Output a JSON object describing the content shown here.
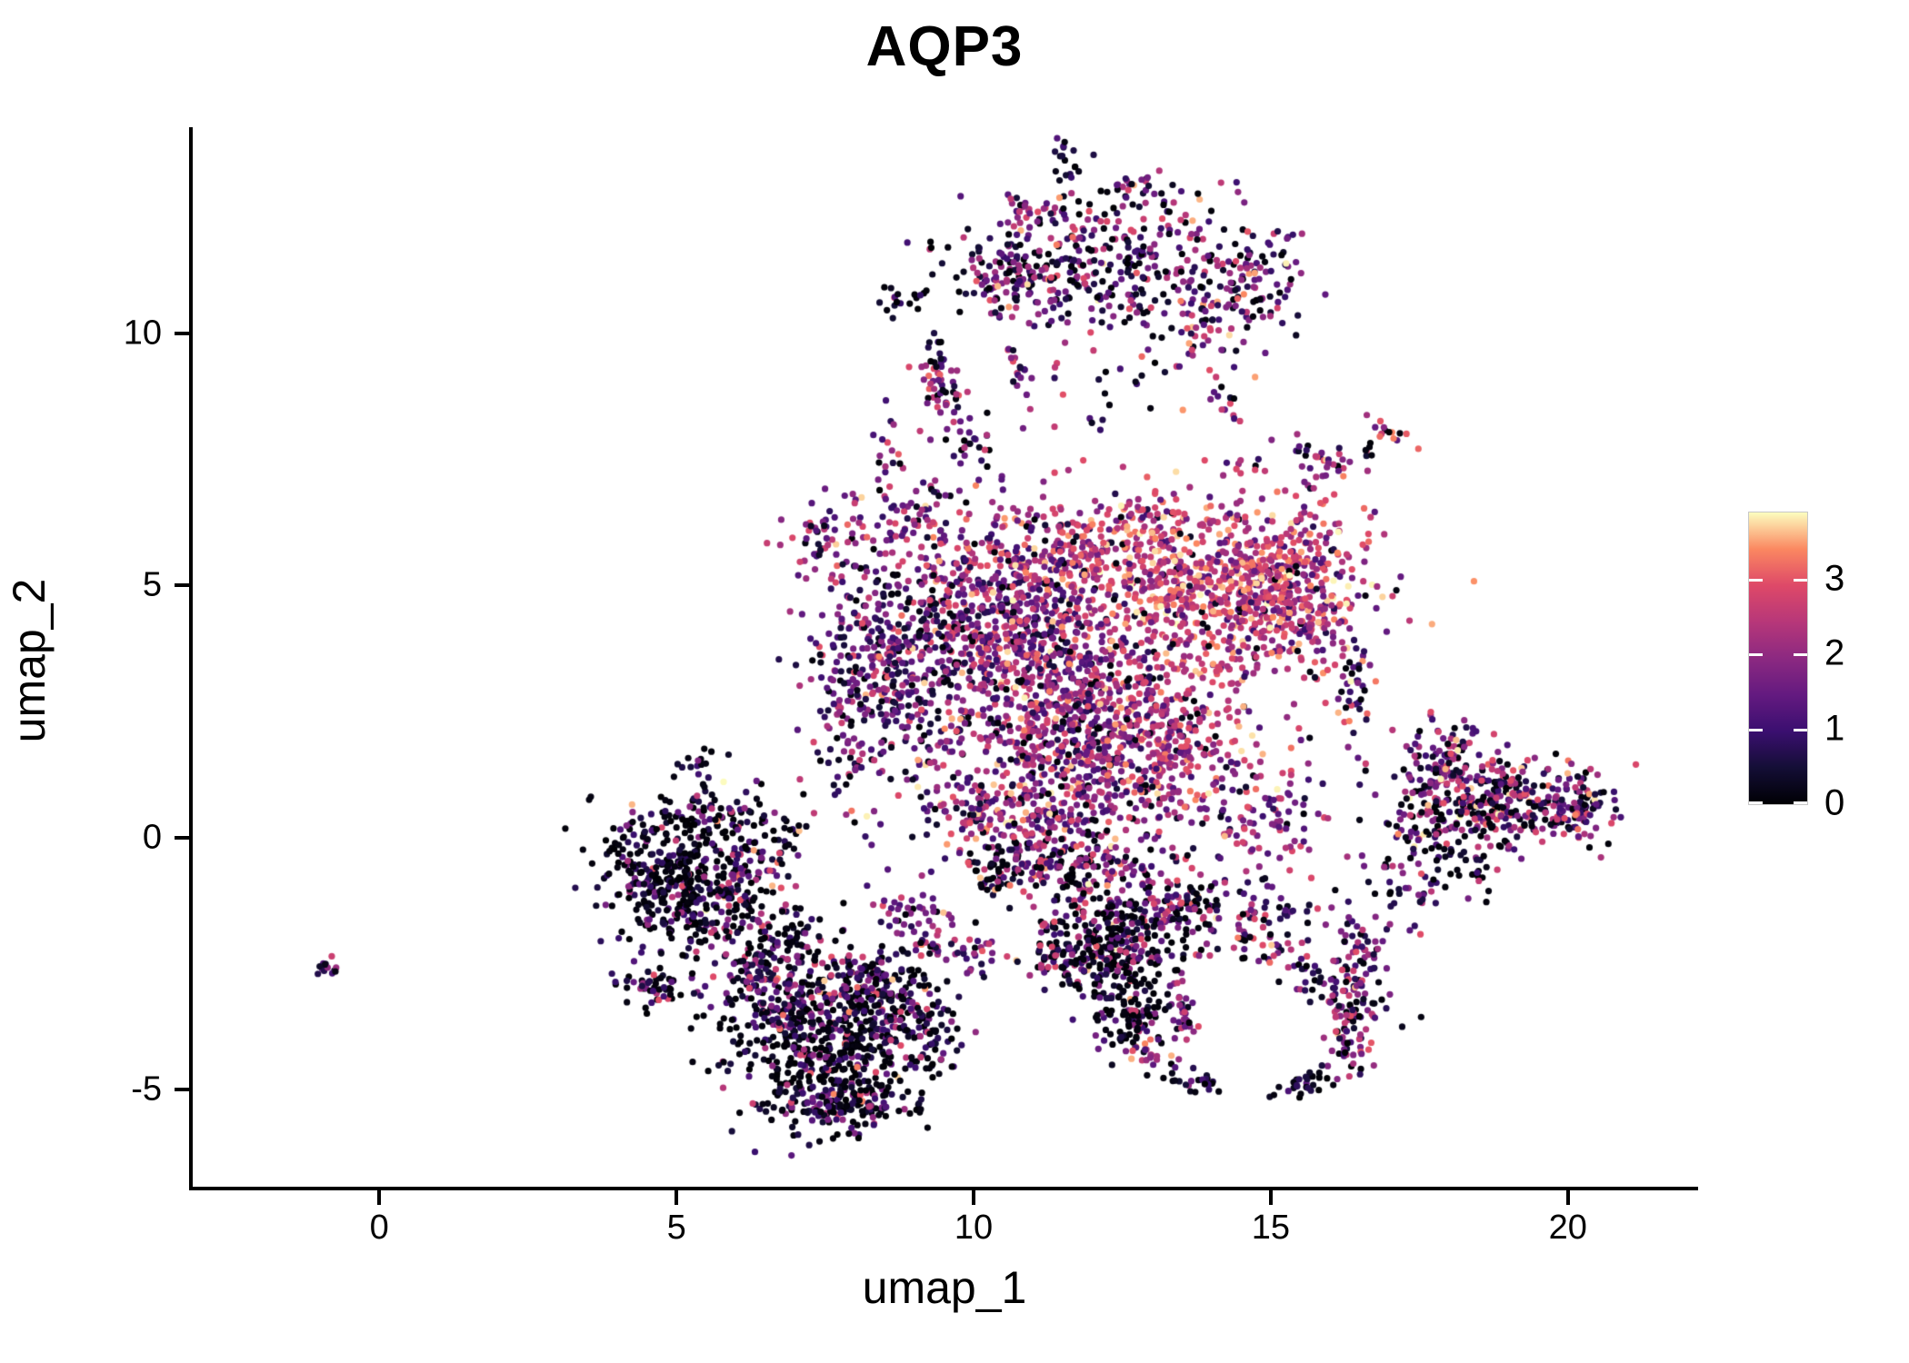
{
  "figure": {
    "title": "AQP3"
  },
  "axes": {
    "x": {
      "label": "umap_1",
      "ticks": [
        0,
        5,
        10,
        15,
        20
      ]
    },
    "y": {
      "label": "umap_2",
      "ticks": [
        -5,
        0,
        5,
        10
      ]
    }
  },
  "colorbar": {
    "ticks": [
      0,
      1,
      2,
      3
    ],
    "min": 0,
    "max": 3.9
  },
  "chart_data": {
    "type": "scatter",
    "title": "AQP3",
    "xlabel": "umap_1",
    "ylabel": "umap_2",
    "xlim": [
      -3.17,
      22.19
    ],
    "ylim": [
      -6.92,
      14.09
    ],
    "x_ticks": [
      0,
      5,
      10,
      15,
      20
    ],
    "y_ticks": [
      -5,
      0,
      5,
      10
    ],
    "grid": false,
    "legend_position": "right-colorbar",
    "point_radius_px": 3.6,
    "seed": 1337,
    "n_points_total": 8203,
    "color_scale": {
      "name": "magma",
      "domain": [
        0,
        3.9
      ],
      "stops": [
        [
          0.0,
          "#000004"
        ],
        [
          0.125,
          "#140e36"
        ],
        [
          0.25,
          "#3b0f70"
        ],
        [
          0.375,
          "#641a80"
        ],
        [
          0.5,
          "#8c2981"
        ],
        [
          0.625,
          "#b73779"
        ],
        [
          0.75,
          "#de4968"
        ],
        [
          0.875,
          "#fb8861"
        ],
        [
          1.0,
          "#fcfdbf"
        ]
      ]
    },
    "expression_bands": [
      [
        0,
        0.15
      ],
      [
        0.15,
        1.0
      ],
      [
        1.0,
        2.0
      ],
      [
        2.0,
        3.0
      ],
      [
        3.0,
        3.9
      ]
    ],
    "expression_profiles": {
      "dark": [
        0.6,
        0.26,
        0.09,
        0.04,
        0.01
      ],
      "darkmag": [
        0.42,
        0.28,
        0.18,
        0.1,
        0.02
      ],
      "darkpink": [
        0.38,
        0.2,
        0.18,
        0.2,
        0.04
      ],
      "purpledark": [
        0.25,
        0.52,
        0.16,
        0.06,
        0.01
      ],
      "purplemag": [
        0.12,
        0.4,
        0.32,
        0.14,
        0.02
      ],
      "darkpurplemag": [
        0.28,
        0.35,
        0.22,
        0.12,
        0.03
      ],
      "mixed": [
        0.18,
        0.22,
        0.25,
        0.28,
        0.07
      ],
      "magsparse": [
        0.1,
        0.3,
        0.4,
        0.18,
        0.02
      ],
      "pinkdark": [
        0.24,
        0.18,
        0.28,
        0.26,
        0.04
      ],
      "pinkmag": [
        0.05,
        0.17,
        0.45,
        0.28,
        0.05
      ],
      "pinkmid": [
        0.06,
        0.13,
        0.35,
        0.37,
        0.09
      ],
      "pinkwarm": [
        0.04,
        0.09,
        0.28,
        0.45,
        0.14
      ],
      "warmpink": [
        0.03,
        0.07,
        0.22,
        0.5,
        0.18
      ],
      "warm": [
        0.02,
        0.04,
        0.12,
        0.55,
        0.27
      ]
    },
    "clusters": [
      [
        11.9,
        11.1,
        1.45,
        0.42,
        -8,
        230,
        "darkpurplemag"
      ],
      [
        12.3,
        12.0,
        1.15,
        0.55,
        0,
        150,
        "mixed"
      ],
      [
        13.9,
        10.4,
        0.5,
        0.7,
        0,
        90,
        "pinkmag"
      ],
      [
        11.55,
        13.3,
        0.12,
        0.3,
        10,
        16,
        "purpledark"
      ],
      [
        10.45,
        11.0,
        0.5,
        0.33,
        0,
        60,
        "mixed"
      ],
      [
        8.85,
        10.7,
        0.22,
        0.15,
        0,
        16,
        "purpledark"
      ],
      [
        14.9,
        11.2,
        0.42,
        0.5,
        0,
        55,
        "mixed"
      ],
      [
        10.9,
        12.4,
        0.3,
        0.22,
        0,
        22,
        "pinkwarm"
      ],
      [
        12.7,
        12.85,
        0.22,
        0.25,
        0,
        20,
        "darkpurplemag"
      ],
      [
        9.55,
        8.6,
        0.18,
        0.42,
        15,
        30,
        "pinkmag"
      ],
      [
        9.3,
        9.2,
        0.18,
        0.18,
        0,
        18,
        "warmpink"
      ],
      [
        9.4,
        9.6,
        0.08,
        0.25,
        0,
        12,
        "dark"
      ],
      [
        9.95,
        7.9,
        0.15,
        0.22,
        0,
        15,
        "pinkdark"
      ],
      [
        10.75,
        9.4,
        0.1,
        0.3,
        15,
        16,
        "pinkmag"
      ],
      [
        15.9,
        7.5,
        0.35,
        0.2,
        -10,
        30,
        "pinkmag"
      ],
      [
        16.6,
        7.75,
        0.12,
        0.09,
        0,
        6,
        "dark"
      ],
      [
        17.05,
        8.0,
        0.22,
        0.09,
        -35,
        14,
        "warm"
      ],
      [
        14.0,
        4.8,
        1.15,
        0.85,
        0,
        650,
        "warm"
      ],
      [
        15.35,
        5.0,
        0.65,
        0.75,
        0,
        280,
        "warmpink"
      ],
      [
        11.3,
        5.6,
        1.2,
        0.5,
        0,
        280,
        "warmpink"
      ],
      [
        10.3,
        4.4,
        0.9,
        0.8,
        0,
        420,
        "pinkmag"
      ],
      [
        8.6,
        3.4,
        0.7,
        0.95,
        0,
        300,
        "purplemag"
      ],
      [
        11.5,
        3.0,
        1.1,
        0.9,
        0,
        600,
        "pinkmid"
      ],
      [
        12.8,
        1.6,
        1.0,
        0.8,
        0,
        450,
        "pinkwarm"
      ],
      [
        10.6,
        0.6,
        1.0,
        0.7,
        0,
        330,
        "pinkmid"
      ],
      [
        11.6,
        -0.55,
        0.8,
        0.45,
        0,
        170,
        "pinkdark"
      ],
      [
        10.35,
        -0.75,
        0.2,
        0.3,
        0,
        40,
        "dark"
      ],
      [
        7.9,
        2.4,
        0.3,
        1.1,
        5,
        80,
        "pinkmag"
      ],
      [
        9.0,
        -1.6,
        0.5,
        0.28,
        -30,
        50,
        "pinkmag"
      ],
      [
        13.1,
        6.4,
        0.6,
        0.28,
        0,
        60,
        "warm"
      ],
      [
        16.3,
        2.9,
        0.3,
        0.7,
        0,
        55,
        "mixed"
      ],
      [
        14.9,
        0.3,
        0.6,
        0.55,
        0,
        90,
        "pinkmag"
      ],
      [
        7.6,
        6.0,
        0.45,
        0.5,
        -35,
        70,
        "pinkmag"
      ],
      [
        8.9,
        6.35,
        0.3,
        0.35,
        0,
        30,
        "pinkmag"
      ],
      [
        4.85,
        -0.75,
        0.55,
        0.7,
        0,
        330,
        "dark"
      ],
      [
        5.7,
        -1.3,
        0.5,
        0.45,
        0,
        160,
        "darkpink"
      ],
      [
        4.6,
        -2.9,
        0.35,
        0.25,
        0,
        50,
        "darkmag"
      ],
      [
        6.4,
        -0.1,
        0.45,
        0.45,
        0,
        80,
        "darkmag"
      ],
      [
        5.6,
        0.6,
        0.3,
        0.3,
        0,
        40,
        "darkpurplemag"
      ],
      [
        5.3,
        1.5,
        0.2,
        0.25,
        0,
        12,
        "dark"
      ],
      [
        7.5,
        -4.4,
        0.8,
        0.75,
        0,
        420,
        "dark"
      ],
      [
        7.0,
        -3.2,
        0.7,
        0.5,
        0,
        200,
        "darkpurplemag"
      ],
      [
        8.6,
        -3.4,
        0.5,
        0.5,
        0,
        150,
        "darkmag"
      ],
      [
        7.8,
        -5.35,
        0.7,
        0.22,
        0,
        90,
        "darkmag"
      ],
      [
        6.3,
        -2.6,
        0.3,
        0.3,
        0,
        50,
        "purplemag"
      ],
      [
        9.35,
        -3.9,
        0.28,
        0.4,
        0,
        40,
        "purpledark"
      ],
      [
        6.9,
        -1.9,
        0.35,
        0.3,
        0,
        60,
        "darkmag"
      ],
      [
        8.3,
        -2.8,
        0.35,
        0.35,
        0,
        70,
        "darkpurplemag"
      ],
      [
        9.8,
        -2.3,
        0.5,
        0.22,
        -15,
        40,
        "pinkmag"
      ],
      [
        11.4,
        -2.5,
        0.25,
        0.3,
        0,
        30,
        "darkpink"
      ],
      [
        12.5,
        -1.8,
        0.7,
        0.5,
        0,
        260,
        "darkpink"
      ],
      [
        12.2,
        -2.6,
        0.45,
        0.4,
        0,
        120,
        "darkmag"
      ],
      [
        12.65,
        -3.55,
        0.3,
        0.35,
        0,
        90,
        "dark"
      ],
      [
        13.6,
        -1.35,
        0.45,
        0.3,
        0,
        70,
        "pinkdark"
      ],
      [
        13.5,
        -3.5,
        0.12,
        0.5,
        20,
        35,
        "pinkmag"
      ],
      [
        13.0,
        -4.3,
        0.35,
        0.13,
        -25,
        25,
        "pinkwarm"
      ],
      [
        13.7,
        -4.85,
        0.28,
        0.08,
        0,
        22,
        "dark"
      ],
      [
        14.6,
        -2.0,
        0.3,
        0.3,
        0,
        40,
        "mixed"
      ],
      [
        16.1,
        -3.0,
        0.5,
        0.28,
        -35,
        80,
        "darkpurplemag"
      ],
      [
        16.55,
        -2.1,
        0.22,
        0.35,
        0,
        40,
        "purplemag"
      ],
      [
        16.35,
        -3.9,
        0.22,
        0.45,
        0,
        60,
        "mixed"
      ],
      [
        15.6,
        -4.85,
        0.3,
        0.13,
        10,
        30,
        "purpledark"
      ],
      [
        18.9,
        0.75,
        0.85,
        0.5,
        0,
        300,
        "mixed"
      ],
      [
        20.0,
        0.55,
        0.35,
        0.35,
        0,
        80,
        "mixed"
      ],
      [
        18.0,
        1.3,
        0.4,
        0.4,
        0,
        70,
        "pinkmag"
      ],
      [
        17.6,
        0.3,
        0.3,
        0.5,
        0,
        50,
        "darkpink"
      ],
      [
        18.3,
        -0.6,
        0.3,
        0.3,
        0,
        30,
        "darkmag"
      ],
      [
        17.9,
        2.1,
        0.25,
        0.3,
        0,
        25,
        "pinkmag"
      ],
      [
        17.3,
        -0.9,
        0.28,
        0.45,
        0,
        40,
        "purplemag"
      ],
      [
        -0.85,
        -2.6,
        0.16,
        0.1,
        -30,
        14,
        "purpledark"
      ],
      [
        12.1,
        8.9,
        0.5,
        0.6,
        0,
        25,
        "mixed"
      ],
      [
        10.6,
        7.3,
        0.6,
        0.5,
        0,
        20,
        "pinkmag"
      ],
      [
        14.3,
        8.7,
        0.15,
        0.25,
        0,
        12,
        "pinkwarm"
      ],
      [
        14.5,
        7.3,
        0.2,
        0.2,
        0,
        8,
        "pinkmag"
      ],
      [
        15.8,
        6.3,
        0.3,
        0.4,
        0,
        20,
        "warmpink"
      ],
      [
        8.6,
        7.8,
        0.25,
        0.6,
        0,
        18,
        "magsparse"
      ],
      [
        15.1,
        -1.4,
        0.4,
        0.35,
        0,
        30,
        "magsparse"
      ],
      [
        9.3,
        6.9,
        0.2,
        0.3,
        0,
        12,
        "magsparse"
      ]
    ]
  }
}
